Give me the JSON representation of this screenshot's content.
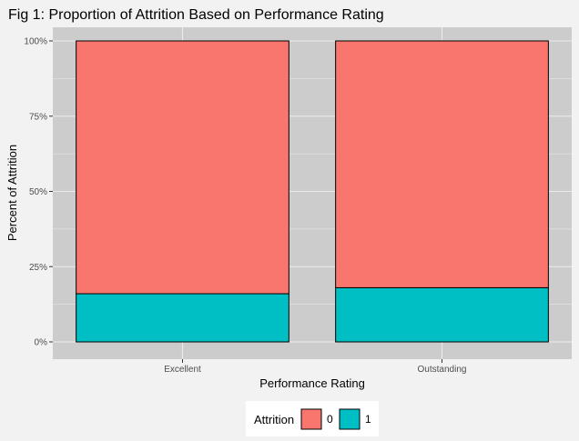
{
  "chart_data": {
    "type": "bar",
    "stacked": true,
    "title": "Fig 1: Proportion of Attrition Based on Performance Rating",
    "xlabel": "Performance Rating",
    "ylabel": "Percent of Attrition",
    "categories": [
      "Excellent",
      "Outstanding"
    ],
    "series": [
      {
        "name": "0",
        "values": [
          84,
          82
        ],
        "color": "#f8766d"
      },
      {
        "name": "1",
        "values": [
          16,
          18
        ],
        "color": "#00bfc4"
      }
    ],
    "ylim": [
      0,
      100
    ],
    "y_ticks": [
      0,
      25,
      50,
      75,
      100
    ],
    "y_tick_labels": [
      "0%",
      "25%",
      "50%",
      "75%",
      "100%"
    ],
    "grid": true,
    "legend": {
      "title": "Attrition",
      "position": "bottom"
    },
    "panel_color": "#cccccc",
    "background_color": "#f2f2f2"
  }
}
